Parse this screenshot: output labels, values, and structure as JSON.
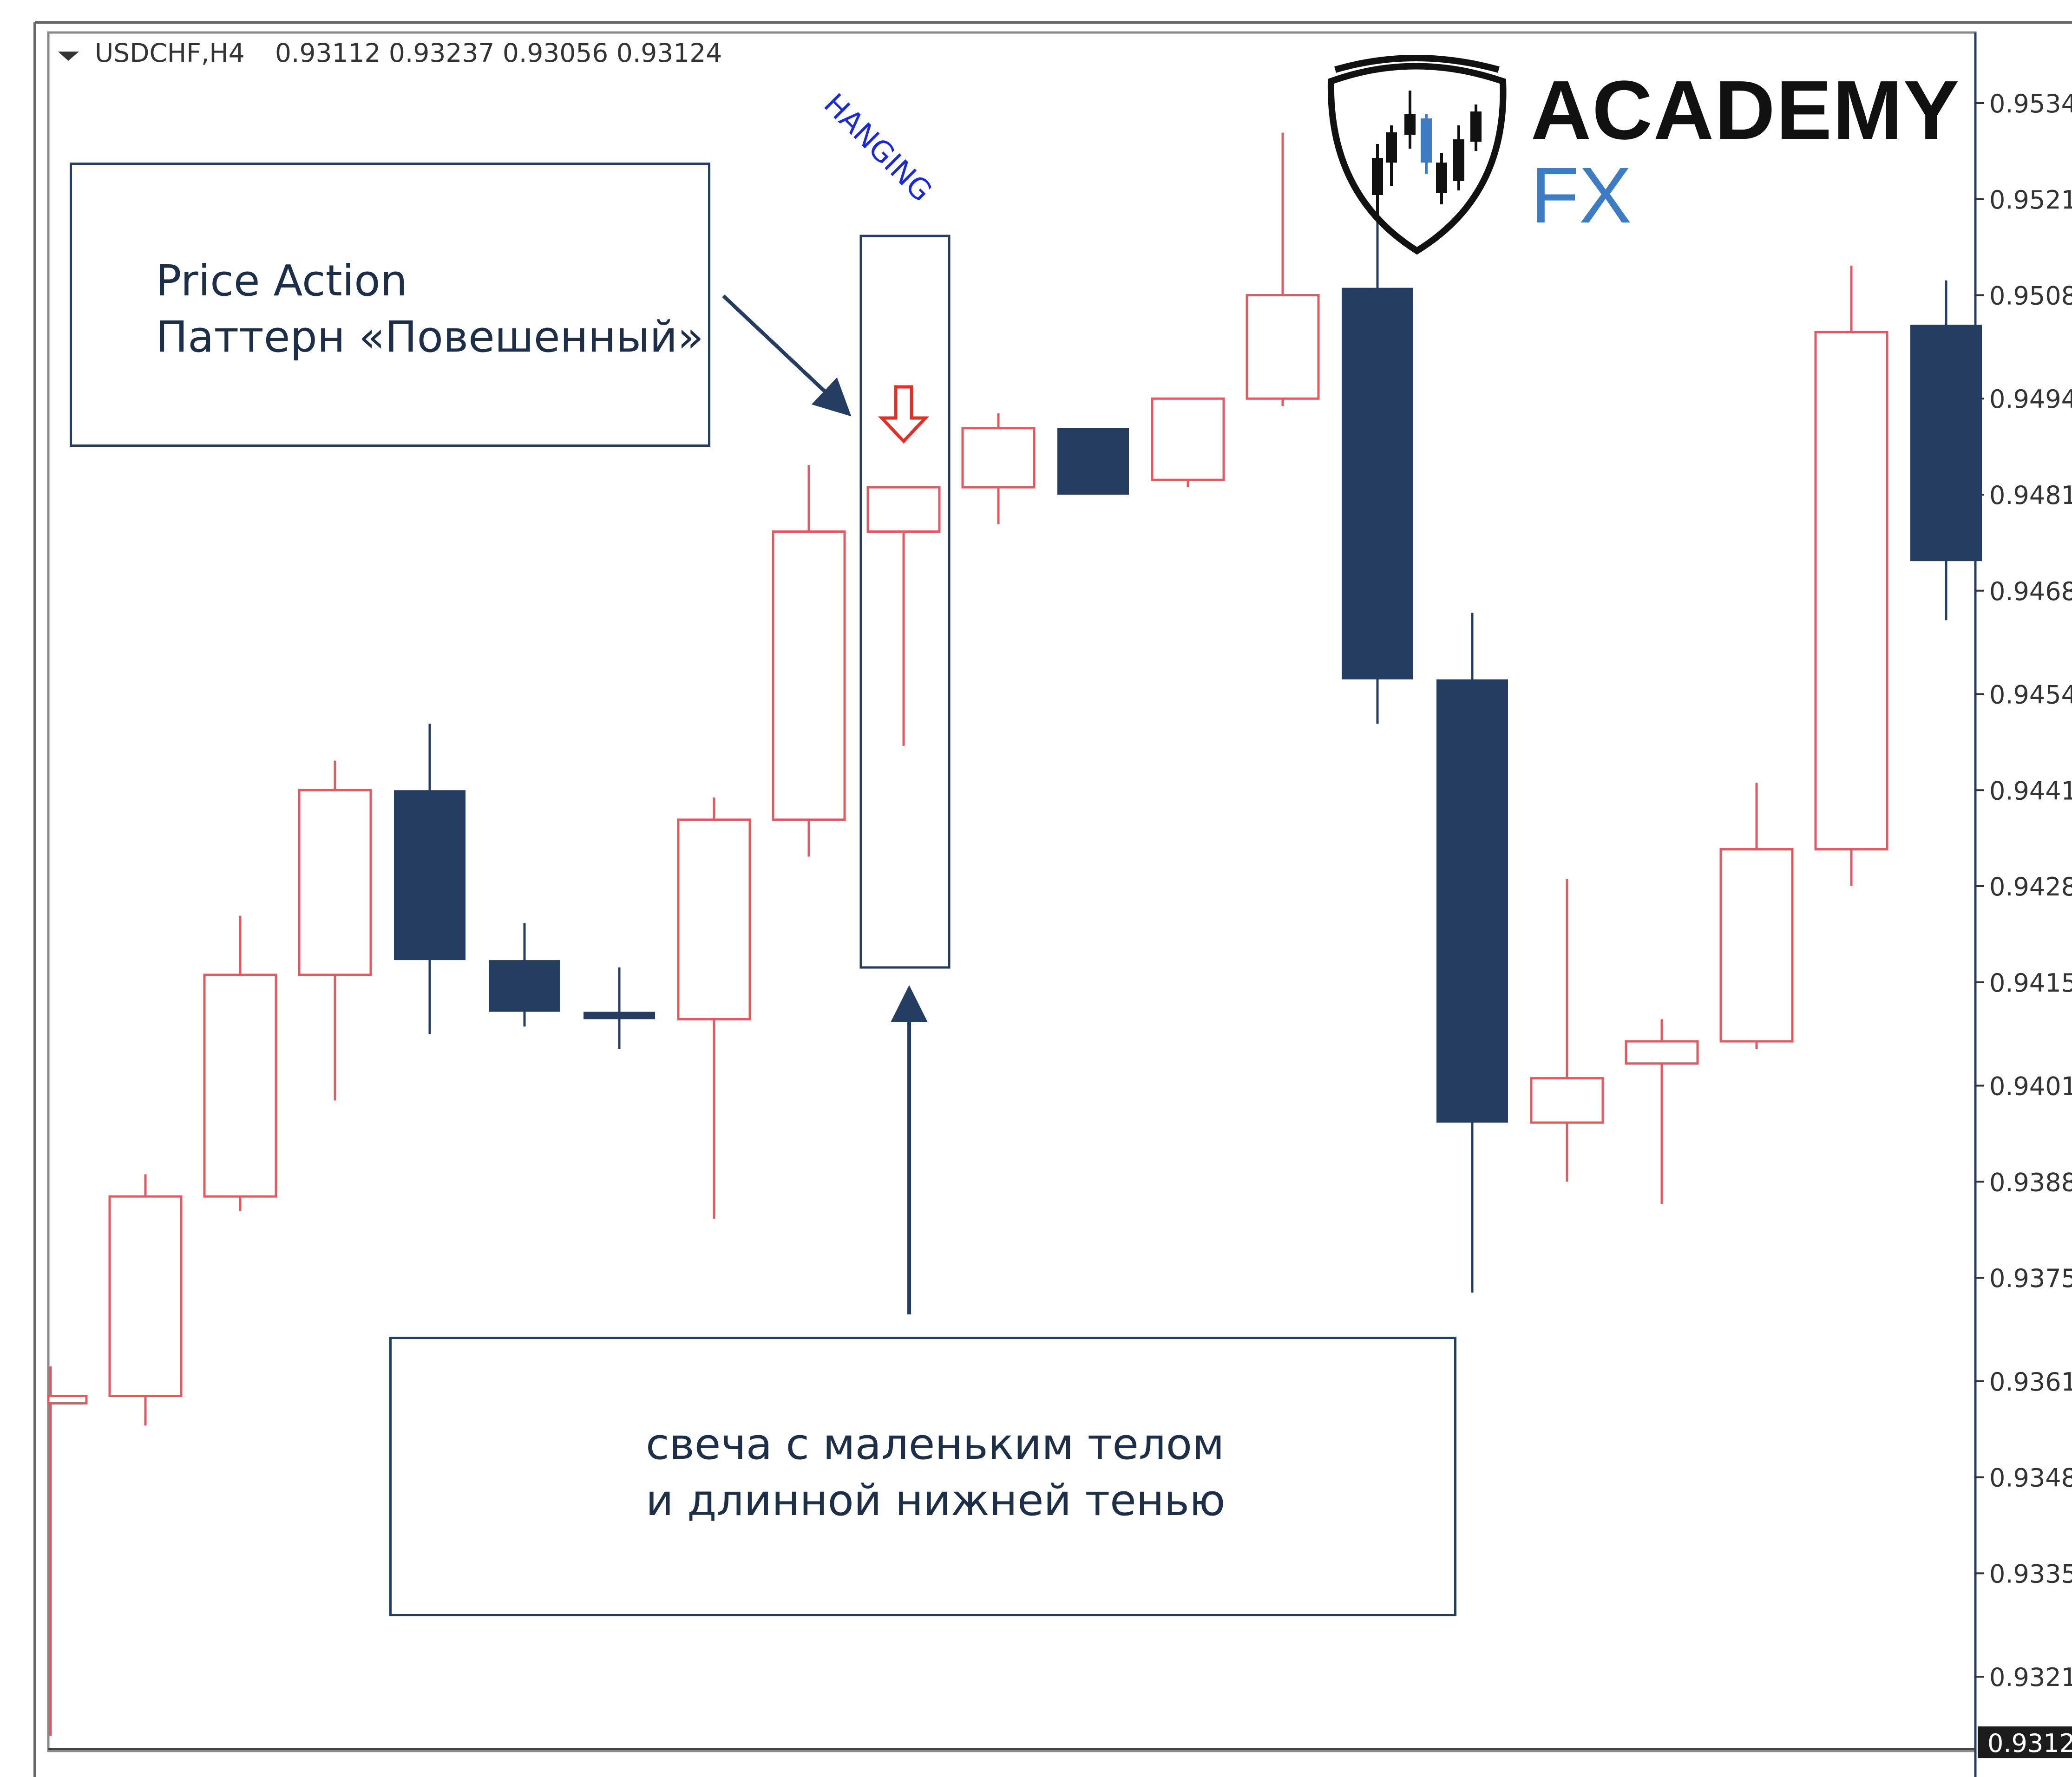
{
  "header": {
    "symbol": "USDCHF,H4",
    "ohlc": "0.93112 0.93237 0.93056 0.93124"
  },
  "logo": {
    "line1": "ACADEMY",
    "line2": "FX",
    "icon": "candlestick-shield-icon"
  },
  "annotations": {
    "top_box": {
      "line1": "Price Action",
      "line2": "Паттерн «Повешенный»"
    },
    "bottom_box": {
      "line1": "свеча с маленьким телом",
      "line2": "и длинной нижней тенью"
    },
    "pattern_label": "HANGING"
  },
  "colors": {
    "bull": "#e05a62",
    "bear": "#243d60",
    "frame": "#243d60",
    "label": "#1a2bd6",
    "signal_arrow": "#e0302a"
  },
  "chart_data": {
    "type": "candlestick",
    "symbol": "USDCHF",
    "timeframe": "H4",
    "ylim": [
      0.9305,
      0.9539
    ],
    "y_ticks": [
      "0.9534",
      "0.9521",
      "0.9508",
      "0.9494",
      "0.9481",
      "0.9468",
      "0.9454",
      "0.9441",
      "0.9428",
      "0.9415",
      "0.9401",
      "0.9388",
      "0.9375",
      "0.9361",
      "0.9348",
      "0.9335",
      "0.9321"
    ],
    "current_price": "0.9312",
    "candles": [
      {
        "o": 0.9358,
        "h": 0.9363,
        "l": 0.9313,
        "c": 0.9359,
        "dir": "bull"
      },
      {
        "o": 0.9359,
        "h": 0.9389,
        "l": 0.9355,
        "c": 0.9386,
        "dir": "bull"
      },
      {
        "o": 0.9386,
        "h": 0.9424,
        "l": 0.9384,
        "c": 0.9416,
        "dir": "bull"
      },
      {
        "o": 0.9416,
        "h": 0.9445,
        "l": 0.9399,
        "c": 0.9441,
        "dir": "bull"
      },
      {
        "o": 0.9441,
        "h": 0.945,
        "l": 0.9408,
        "c": 0.9418,
        "dir": "bear"
      },
      {
        "o": 0.9418,
        "h": 0.9423,
        "l": 0.9409,
        "c": 0.9411,
        "dir": "bear"
      },
      {
        "o": 0.9411,
        "h": 0.9417,
        "l": 0.9406,
        "c": 0.941,
        "dir": "bear"
      },
      {
        "o": 0.941,
        "h": 0.944,
        "l": 0.9383,
        "c": 0.9437,
        "dir": "bull"
      },
      {
        "o": 0.9437,
        "h": 0.9485,
        "l": 0.9432,
        "c": 0.9476,
        "dir": "bull"
      },
      {
        "o": 0.9476,
        "h": 0.9481,
        "l": 0.9447,
        "c": 0.9482,
        "dir": "bull"
      },
      {
        "o": 0.9482,
        "h": 0.9492,
        "l": 0.9477,
        "c": 0.949,
        "dir": "bull"
      },
      {
        "o": 0.949,
        "h": 0.9489,
        "l": 0.9482,
        "c": 0.9481,
        "dir": "bear"
      },
      {
        "o": 0.9483,
        "h": 0.9494,
        "l": 0.9482,
        "c": 0.9494,
        "dir": "bull"
      },
      {
        "o": 0.9494,
        "h": 0.953,
        "l": 0.9493,
        "c": 0.9508,
        "dir": "bull"
      },
      {
        "o": 0.9509,
        "h": 0.9518,
        "l": 0.945,
        "c": 0.9456,
        "dir": "bear"
      },
      {
        "o": 0.9456,
        "h": 0.9465,
        "l": 0.9373,
        "c": 0.9396,
        "dir": "bear"
      },
      {
        "o": 0.9396,
        "h": 0.9429,
        "l": 0.9388,
        "c": 0.9402,
        "dir": "bull"
      },
      {
        "o": 0.9404,
        "h": 0.941,
        "l": 0.9385,
        "c": 0.9407,
        "dir": "bull"
      },
      {
        "o": 0.9407,
        "h": 0.9442,
        "l": 0.9406,
        "c": 0.9433,
        "dir": "bull"
      },
      {
        "o": 0.9433,
        "h": 0.9512,
        "l": 0.9428,
        "c": 0.9503,
        "dir": "bull"
      },
      {
        "o": 0.9504,
        "h": 0.951,
        "l": 0.9464,
        "c": 0.9472,
        "dir": "bear"
      }
    ],
    "highlight_index": 9
  }
}
